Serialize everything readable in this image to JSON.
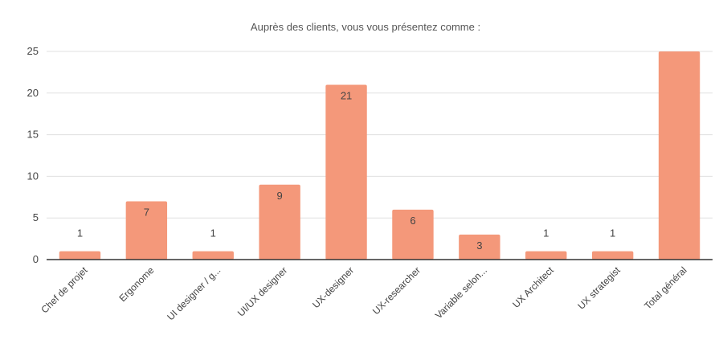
{
  "chart_data": {
    "type": "bar",
    "title": "Auprès des clients, vous vous présentez comme :",
    "categories": [
      "Chef de projet",
      "Ergonome",
      "UI designer / g...",
      "UI/UX designer",
      "UX-designer",
      "UX-researcher",
      "Variable selon...",
      "UX Architect",
      "UX strategist",
      "Total général"
    ],
    "values": [
      1,
      7,
      1,
      9,
      21,
      6,
      3,
      1,
      1,
      25
    ],
    "data_labels": [
      "1",
      "7",
      "1",
      "9",
      "21",
      "6",
      "3",
      "1",
      "1",
      ""
    ],
    "ylim": [
      0,
      25
    ],
    "yticks": [
      0,
      5,
      10,
      15,
      20,
      25
    ],
    "grid": true,
    "legend": "none",
    "bar_color": "#f4987a"
  }
}
